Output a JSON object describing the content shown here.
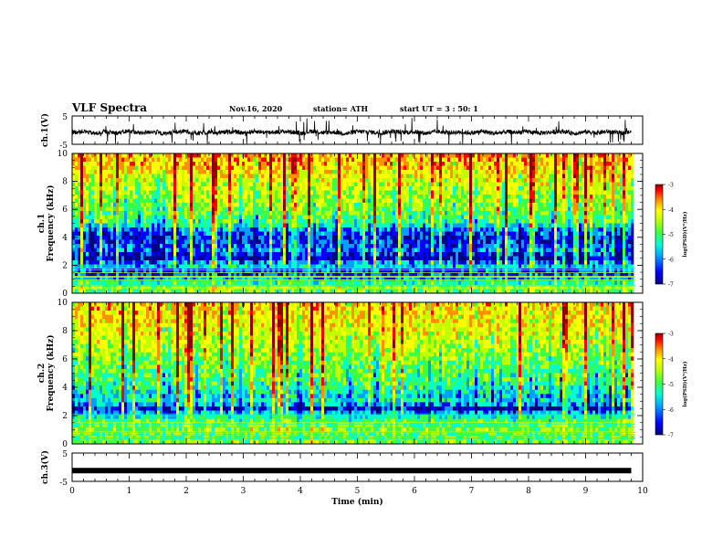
{
  "header": {
    "title": "VLF Spectra",
    "date": "Nov.16, 2020",
    "station": "station= ATH",
    "start": "start  UT =   3 : 50: 1"
  },
  "colors": {
    "spectrogram_scale": [
      "#000080",
      "#0000ff",
      "#00a0ff",
      "#00ffd0",
      "#40ff40",
      "#c0ff00",
      "#ffff00",
      "#ff9000",
      "#ff0000",
      "#900000"
    ]
  },
  "chart_data": [
    {
      "type": "line",
      "panel": "ch1-waveform",
      "ylabel": "ch.1(V)",
      "ylim": [
        -5,
        5
      ],
      "yticks": [
        "5",
        "-5"
      ],
      "xlim": [
        0,
        10
      ],
      "series": [
        {
          "values_note": "",
          "x": [
            0,
            0.2,
            0.4,
            0.6,
            0.8,
            1.0,
            1.2,
            1.4,
            1.6,
            1.8,
            2.0,
            2.2,
            2.4,
            2.6,
            2.8,
            3.0,
            3.2,
            3.4,
            3.6,
            3.8,
            4.0,
            4.2,
            4.4,
            4.6,
            4.8,
            5.0,
            5.2,
            5.4,
            5.6,
            5.8,
            6.0,
            6.2,
            6.4,
            6.6,
            6.8,
            7.0,
            7.2,
            7.4,
            7.6,
            7.8,
            8.0,
            8.2,
            8.4,
            8.6,
            8.8,
            9.0,
            9.2,
            9.4,
            9.6,
            9.8
          ],
          "y": [
            -0.8,
            -0.4,
            -1.2,
            -0.6,
            -1.0,
            -0.3,
            -1.1,
            -0.5,
            -1.3,
            -0.7,
            -0.4,
            -1.2,
            -0.6,
            -0.9,
            -0.5,
            -1.0,
            -0.4,
            -0.8,
            -0.6,
            -0.5,
            -1.1,
            -0.3,
            -0.9,
            -0.7,
            -1.2,
            -0.5,
            -0.6,
            -1.0,
            -0.4,
            -0.8,
            -0.6,
            -1.1,
            -0.5,
            -0.9,
            -0.7,
            -1.0,
            -0.4,
            -1.2,
            -0.6,
            -0.8,
            -0.5,
            -1.0,
            -0.7,
            -0.4,
            -1.1,
            -0.6,
            -0.9,
            -0.5,
            -1.0,
            -0.7
          ]
        }
      ]
    },
    {
      "type": "heatmap",
      "panel": "ch1-spectrogram",
      "ylabel": "ch.1\nFrequency  (kHz)",
      "ylim": [
        0,
        10
      ],
      "yticks": [
        "0",
        "2",
        "4",
        "6",
        "8",
        "10"
      ],
      "xlim": [
        0,
        10
      ],
      "colorbar": {
        "label": "log(PSD)(V²/Hz)",
        "range": [
          -7,
          -3
        ],
        "ticks": [
          "-3",
          "-4",
          "-5",
          "-6",
          "-7"
        ]
      },
      "frequency_profile_kHz": [
        {
          "f": 0.0,
          "level": -5.2
        },
        {
          "f": 0.5,
          "level": -4.8
        },
        {
          "f": 1.0,
          "level": -6.0
        },
        {
          "f": 1.5,
          "level": -6.4
        },
        {
          "f": 2.0,
          "level": -5.6
        },
        {
          "f": 2.5,
          "level": -6.6
        },
        {
          "f": 3.0,
          "level": -6.0
        },
        {
          "f": 3.5,
          "level": -6.2
        },
        {
          "f": 4.0,
          "level": -6.4
        },
        {
          "f": 4.5,
          "level": -6.0
        },
        {
          "f": 5.0,
          "level": -5.4
        },
        {
          "f": 6.0,
          "level": -5.0
        },
        {
          "f": 7.0,
          "level": -4.8
        },
        {
          "f": 8.0,
          "level": -4.6
        },
        {
          "f": 9.0,
          "level": -4.2
        },
        {
          "f": 10.0,
          "level": -4.0
        }
      ]
    },
    {
      "type": "heatmap",
      "panel": "ch2-spectrogram",
      "ylabel": "ch.2\nFrequency  (kHz)",
      "ylim": [
        0,
        10
      ],
      "yticks": [
        "0",
        "2",
        "4",
        "6",
        "8",
        "10"
      ],
      "xlim": [
        0,
        10
      ],
      "colorbar": {
        "label": "log(PSD)(V²/Hz)",
        "range": [
          -7,
          -3
        ],
        "ticks": [
          "-3",
          "-4",
          "-5",
          "-6",
          "-7"
        ]
      },
      "frequency_profile_kHz": [
        {
          "f": 0.0,
          "level": -5.0
        },
        {
          "f": 0.5,
          "level": -5.2
        },
        {
          "f": 1.0,
          "level": -5.0
        },
        {
          "f": 1.5,
          "level": -5.2
        },
        {
          "f": 2.0,
          "level": -5.6
        },
        {
          "f": 2.5,
          "level": -6.4
        },
        {
          "f": 3.0,
          "level": -5.6
        },
        {
          "f": 3.5,
          "level": -5.8
        },
        {
          "f": 4.0,
          "level": -5.4
        },
        {
          "f": 5.0,
          "level": -5.2
        },
        {
          "f": 6.0,
          "level": -5.0
        },
        {
          "f": 7.0,
          "level": -4.7
        },
        {
          "f": 8.0,
          "level": -4.5
        },
        {
          "f": 9.0,
          "level": -4.3
        },
        {
          "f": 10.0,
          "level": -4.2
        }
      ]
    },
    {
      "type": "line",
      "panel": "ch3-waveform",
      "ylabel": "ch.3(V)",
      "ylim": [
        -5,
        5
      ],
      "yticks": [
        "5",
        "-5"
      ],
      "xlim": [
        0,
        10
      ],
      "series": [
        {
          "x": [
            0,
            9.8
          ],
          "y": [
            -1.2,
            -1.2
          ]
        }
      ],
      "xlabel": "Time  (min)",
      "xticks": [
        "0",
        "1",
        "2",
        "3",
        "4",
        "5",
        "6",
        "7",
        "8",
        "9",
        "10"
      ]
    }
  ]
}
